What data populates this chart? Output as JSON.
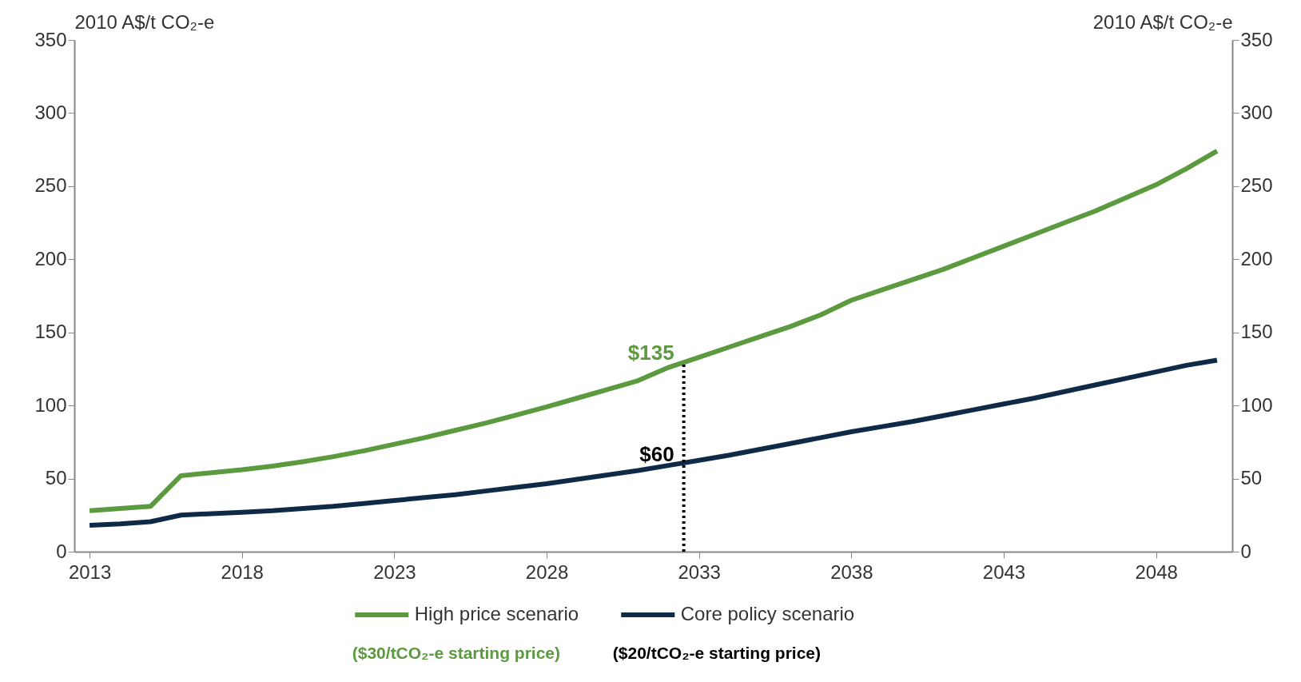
{
  "chart_data": {
    "type": "line",
    "ylabel": "2010 A$/t CO₂-e",
    "y2label": "2010 A$/t CO₂-e",
    "x": [
      2013,
      2014,
      2015,
      2016,
      2017,
      2018,
      2019,
      2020,
      2021,
      2022,
      2023,
      2024,
      2025,
      2026,
      2027,
      2028,
      2029,
      2030,
      2031,
      2032,
      2033,
      2034,
      2035,
      2036,
      2037,
      2038,
      2039,
      2040,
      2041,
      2042,
      2043,
      2044,
      2045,
      2046,
      2047,
      2048,
      2049,
      2050
    ],
    "xlim": [
      2012.5,
      2050.5
    ],
    "xticks": [
      2013,
      2018,
      2023,
      2028,
      2033,
      2038,
      2043,
      2048
    ],
    "ylim": [
      0,
      350
    ],
    "yticks": [
      0,
      50,
      100,
      150,
      200,
      250,
      300,
      350
    ],
    "y2lim": [
      0,
      350
    ],
    "y2ticks": [
      0,
      50,
      100,
      150,
      200,
      250,
      300,
      350
    ],
    "series": [
      {
        "name": "High price scenario",
        "color": "#5b9a3e",
        "values": [
          28,
          29.5,
          31,
          52,
          54,
          56,
          58.5,
          61.5,
          65,
          69,
          73.5,
          78,
          83,
          88,
          93.5,
          99,
          105,
          111,
          117,
          126,
          133,
          140,
          147,
          154,
          162,
          172,
          179,
          186,
          193,
          201,
          209,
          217,
          225,
          233,
          242,
          251,
          262,
          274
        ]
      },
      {
        "name": "Core policy scenario",
        "color": "#0f2a47",
        "values": [
          18,
          19,
          20.5,
          25,
          26,
          27,
          28,
          29.5,
          31,
          33,
          35,
          37,
          39,
          41.5,
          44,
          46.5,
          49.5,
          52.5,
          55.5,
          59,
          62.5,
          66,
          70,
          74,
          78,
          82,
          85.5,
          89,
          93,
          97,
          101,
          105,
          109.5,
          114,
          118.5,
          123,
          127.5,
          131
        ]
      }
    ],
    "ref_lines": [
      {
        "axis": "x",
        "value": 2032.5,
        "line_style": "dotted",
        "color": "#000000"
      }
    ],
    "annotations": [
      {
        "text": "$135",
        "x": 2032.5,
        "y": 129.5
      },
      {
        "text": "$60",
        "x": 2032.5,
        "y": 60
      },
      "($30/tCO₂-e starting price)",
      "($20/tCO₂-e starting price)"
    ],
    "legend": "bottom",
    "grid": false,
    "line_style": "solid",
    "marker": "none"
  }
}
